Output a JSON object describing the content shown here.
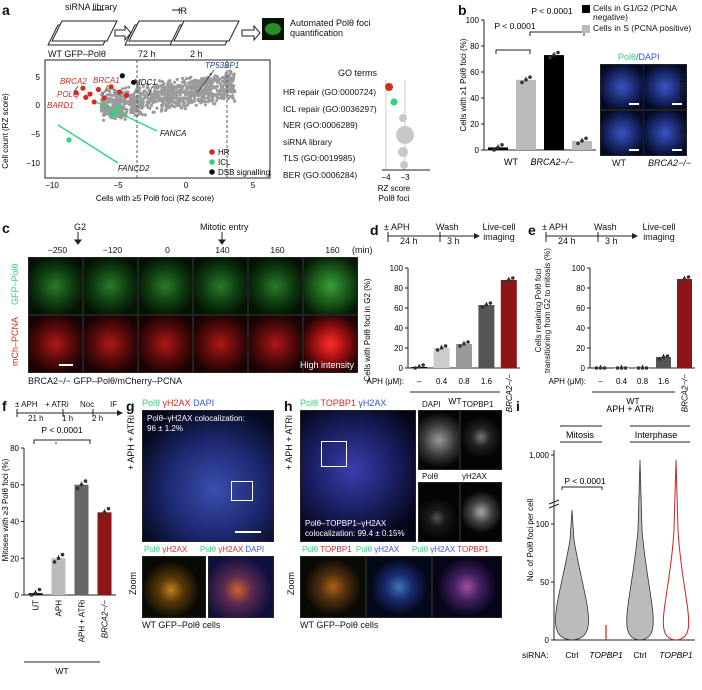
{
  "panels": {
    "a": "a",
    "b": "b",
    "c": "c",
    "d": "d",
    "e": "e",
    "f": "f",
    "g": "g",
    "h": "h",
    "i": "i"
  },
  "a": {
    "workflow": {
      "top_left": "siRNA library",
      "mid": "IR",
      "sub_left": "WT GFP–Polθ",
      "t1": "72 h",
      "t2": "2 h",
      "result": "Automated Polθ foci quantification"
    },
    "ylabel": "Cell count (RZ score)",
    "xlabel": "Cells with ≥5 Polθ foci (RZ score)",
    "yticks": [
      "5",
      "0",
      "−5",
      "−10"
    ],
    "xticks": [
      "−10",
      "−5",
      "0",
      "5"
    ],
    "genes": [
      "POLQ",
      "BRCA2",
      "BRCA1",
      "BARD1",
      "MDC1",
      "TP53BP1",
      "FANCA",
      "FANCD2"
    ],
    "legend": [
      {
        "label": "HR",
        "color": "#d62b1f"
      },
      {
        "label": "ICL",
        "color": "#2ed47a"
      },
      {
        "label": "DSB signalling",
        "color": "#111111"
      }
    ],
    "go_title": "GO terms",
    "go_terms": [
      "HR repair (GO:0000724)",
      "ICL repair (GO:0036297)",
      "NER (GO:0006289)",
      "siRNA library",
      "TLS (GO:0019985)",
      "BER (GO:0006284)"
    ],
    "go_xticks": [
      "−4",
      "−3"
    ],
    "go_xlabel1": "RZ score",
    "go_xlabel2": "Polθ foci"
  },
  "b": {
    "ylabel": "Cells with ≥1 Polθ foci (%)",
    "yticks": [
      "0",
      "20",
      "40",
      "60",
      "80",
      "100"
    ],
    "groups": [
      "WT",
      "BRCA2−/−"
    ],
    "pvalues": [
      "P < 0.0001",
      "P < 0.0001"
    ],
    "legend": [
      {
        "label": "Cells in G1/G2 (PCNA negative)",
        "color": "#000000"
      },
      {
        "label": "Cells in S (PCNA positive)",
        "color": "#bbbbbb"
      }
    ],
    "img_title_a": "Polθ",
    "img_title_b": "/DAPI",
    "rows": [
      "G1/G2",
      "S"
    ],
    "cols": [
      "WT",
      "BRCA2−/−"
    ]
  },
  "c": {
    "g2_label": "G2",
    "mitotic_label": "Mitotic entry",
    "times": [
      "−250",
      "−120",
      "0",
      "140",
      "160",
      "160"
    ],
    "unit": "(min)",
    "row1": "GFP–Polθ",
    "row2": "mCh–PCNA",
    "high": "High intensity",
    "caption": "BRCA2−/− GFP–Polθ/mCherry–PCNA"
  },
  "d": {
    "timeline": {
      "aph": "± APH",
      "wash": "Wash",
      "t1": "24 h",
      "t2": "3 h",
      "end": "Live-cell imaging"
    },
    "ylabel": "Cells with Polθ foci in G2 (%)",
    "yticks": [
      "0",
      "20",
      "40",
      "60",
      "80",
      "100"
    ],
    "xlabel": "APH (μM):",
    "xcats": [
      "–",
      "0.4",
      "0.8",
      "1.6"
    ],
    "wt": "WT",
    "brca": "BRCA2−/−"
  },
  "e": {
    "timeline": {
      "aph": "± APH",
      "wash": "Wash",
      "t1": "24 h",
      "t2": "3 h",
      "end": "Live-cell imaging"
    },
    "ylabel": "Cells retaining Polθ foci transitioning from G2 to mitosis (%)",
    "yticks": [
      "0",
      "20",
      "40",
      "60",
      "80",
      "100"
    ],
    "xlabel": "APH (μM):",
    "xcats": [
      "–",
      "0.4",
      "0.8",
      "1.6"
    ],
    "wt": "WT",
    "brca": "BRCA2−/−"
  },
  "f": {
    "timeline": {
      "aph": "± APH",
      "atri": "+ ATRi",
      "noc": "Noc",
      "if": "IF",
      "t1": "21 h",
      "t2": "1 h",
      "t3": "2 h"
    },
    "pvalue": "P < 0.0001",
    "ylabel": "Mitoses with ≥3 Polθ foci (%)",
    "yticks": [
      "0",
      "20",
      "40",
      "60",
      "80"
    ],
    "cats": [
      "UT",
      "APH",
      "APH + ATRi",
      "BRCA2−/−"
    ],
    "wt": "WT"
  },
  "g": {
    "title_a": "Polθ",
    "title_b": "γH2AX",
    "title_c": "DAPI",
    "side": "+ APH + ATRi",
    "coloc1": "Polθ–γH2AX colocalization:",
    "coloc2": "96 ± 1.2%",
    "zoom": "Zoom",
    "caption": "WT GFP–Polθ cells"
  },
  "h": {
    "title_a": "Polθ",
    "title_b": "TOPBP1",
    "title_c": "γH2AX",
    "side": "+ APH + ATRi",
    "coloc1": "Polθ–TOPBP1–γH2AX",
    "coloc2": "colocalization: 99.4 ± 0.15%",
    "zoom": "Zoom",
    "caption": "WT GFP–Polθ cells",
    "small": [
      "DAPI",
      "TOPBP1",
      "Polθ",
      "γH2AX"
    ]
  },
  "i": {
    "header": "APH + ATRi",
    "g1": "Mitosis",
    "g2": "Interphase",
    "pvalue": "P < 0.0001",
    "ylabel": "No. of Polθ foci per cell",
    "yticks": [
      "0",
      "50",
      "100"
    ],
    "ybreak": "1,000",
    "sirna": "siRNA:",
    "cats": [
      "Ctrl",
      "TOPBP1",
      "Ctrl",
      "TOPBP1"
    ]
  },
  "chart_data": [
    {
      "panel": "a",
      "type": "scatter",
      "title": "",
      "xlabel": "Cells with ≥5 Polθ foci (RZ score)",
      "ylabel": "Cell count (RZ score)",
      "xlim": [
        -10,
        6
      ],
      "ylim": [
        -12,
        6
      ],
      "series": [
        {
          "name": "HR",
          "color": "#d62b1f",
          "points": [
            [
              -7.8,
              1
            ],
            [
              -7.3,
              1.7
            ],
            [
              -6.8,
              0.8
            ],
            [
              -6.2,
              1.5
            ],
            [
              -5.8,
              0.2
            ],
            [
              -5.3,
              1.9
            ],
            [
              -4.7,
              1.1
            ],
            [
              -4.2,
              0.6
            ],
            [
              -6.5,
              -0.4
            ],
            [
              -7.1,
              0.3
            ]
          ]
        },
        {
          "name": "ICL",
          "color": "#2ed47a",
          "points": [
            [
              -8.3,
              -6.2
            ],
            [
              -5.2,
              -2.3
            ],
            [
              -4.8,
              -1.3
            ]
          ]
        },
        {
          "name": "DSB signalling",
          "color": "#111111",
          "points": [
            [
              -4.5,
              3.6
            ],
            [
              -3.7,
              2.6
            ]
          ]
        }
      ]
    },
    {
      "panel": "b",
      "type": "bar",
      "categories": [
        "WT G1/G2",
        "WT S",
        "BRCA2−/− G1/G2",
        "BRCA2−/− S"
      ],
      "values": [
        2,
        54,
        73,
        7
      ],
      "ylim": [
        0,
        100
      ]
    },
    {
      "panel": "d",
      "type": "bar",
      "categories": [
        "–",
        "0.4",
        "0.8",
        "1.6",
        "BRCA2−/−"
      ],
      "values": [
        1,
        20,
        24,
        63,
        88
      ],
      "ylim": [
        0,
        100
      ]
    },
    {
      "panel": "e",
      "type": "bar",
      "categories": [
        "–",
        "0.4",
        "0.8",
        "1.6",
        "BRCA2−/−"
      ],
      "values": [
        0,
        0,
        0,
        11,
        89
      ],
      "ylim": [
        0,
        100
      ]
    },
    {
      "panel": "f",
      "type": "bar",
      "categories": [
        "UT",
        "APH",
        "APH + ATRi",
        "BRCA2−/−"
      ],
      "values": [
        1,
        20,
        60,
        45
      ],
      "ylim": [
        0,
        80
      ]
    }
  ]
}
